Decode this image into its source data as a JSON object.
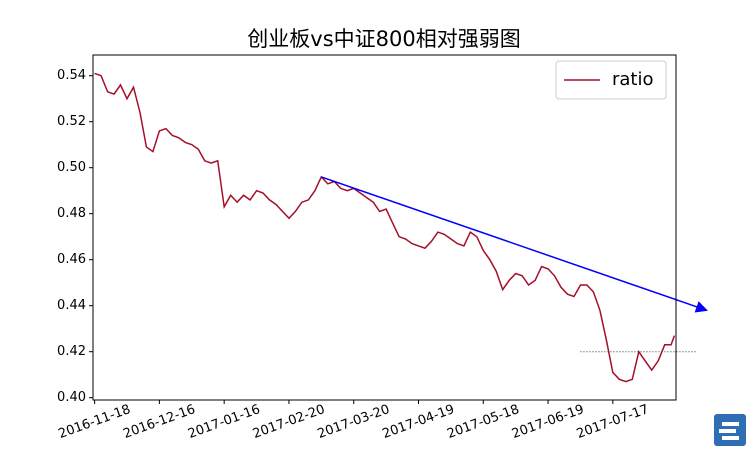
{
  "chart_data": {
    "type": "line",
    "title": "创业板vs中证800相对强弱图",
    "x": [
      0,
      2,
      4,
      6,
      8,
      10,
      12,
      14,
      16,
      18,
      20,
      22,
      24,
      26,
      28,
      30,
      32,
      34,
      36,
      38,
      40,
      42,
      44,
      46,
      48,
      50,
      52,
      54,
      56,
      58,
      60,
      62,
      64,
      66,
      68,
      70,
      72,
      74,
      76,
      78,
      80,
      82,
      84,
      86,
      88,
      90,
      92,
      94,
      96,
      98,
      100,
      102,
      104,
      106,
      108,
      110,
      112,
      114,
      116,
      118,
      120,
      122,
      124,
      126,
      128,
      130,
      132,
      134,
      136,
      138,
      140,
      142,
      144,
      146,
      148,
      150,
      152,
      154,
      156,
      158,
      160,
      162,
      164,
      166,
      168,
      170,
      172,
      174,
      176,
      178,
      179
    ],
    "series": [
      {
        "name": "ratio",
        "color": "#a50f28",
        "values": [
          0.541,
          0.54,
          0.533,
          0.532,
          0.536,
          0.53,
          0.535,
          0.524,
          0.509,
          0.507,
          0.516,
          0.517,
          0.514,
          0.513,
          0.511,
          0.51,
          0.508,
          0.503,
          0.502,
          0.503,
          0.483,
          0.488,
          0.485,
          0.488,
          0.486,
          0.49,
          0.489,
          0.486,
          0.484,
          0.481,
          0.478,
          0.481,
          0.485,
          0.486,
          0.49,
          0.496,
          0.493,
          0.494,
          0.491,
          0.49,
          0.491,
          0.489,
          0.487,
          0.485,
          0.481,
          0.482,
          0.476,
          0.47,
          0.469,
          0.467,
          0.466,
          0.465,
          0.468,
          0.472,
          0.471,
          0.469,
          0.467,
          0.466,
          0.472,
          0.47,
          0.464,
          0.46,
          0.455,
          0.447,
          0.451,
          0.454,
          0.453,
          0.449,
          0.451,
          0.457,
          0.456,
          0.453,
          0.448,
          0.445,
          0.444,
          0.449,
          0.449,
          0.446,
          0.438,
          0.425,
          0.411,
          0.408,
          0.407,
          0.408,
          0.42,
          0.416,
          0.412,
          0.416,
          0.423,
          0.423,
          0.427
        ]
      }
    ],
    "xlim": [
      -0.5,
      179.5
    ],
    "xticks": [
      {
        "value": 0,
        "label": "2016-11-18"
      },
      {
        "value": 20,
        "label": "2016-12-16"
      },
      {
        "value": 40,
        "label": "2017-01-16"
      },
      {
        "value": 60,
        "label": "2017-02-20"
      },
      {
        "value": 80,
        "label": "2017-03-20"
      },
      {
        "value": 100,
        "label": "2017-04-19"
      },
      {
        "value": 120,
        "label": "2017-05-18"
      },
      {
        "value": 140,
        "label": "2017-06-19"
      },
      {
        "value": 160,
        "label": "2017-07-17"
      }
    ],
    "ylim": [
      0.399,
      0.549
    ],
    "yticks": [
      {
        "value": 0.4,
        "label": "0.40"
      },
      {
        "value": 0.42,
        "label": "0.42"
      },
      {
        "value": 0.44,
        "label": "0.44"
      },
      {
        "value": 0.46,
        "label": "0.46"
      },
      {
        "value": 0.48,
        "label": "0.48"
      },
      {
        "value": 0.5,
        "label": "0.50"
      },
      {
        "value": 0.52,
        "label": "0.52"
      },
      {
        "value": 0.54,
        "label": "0.54"
      }
    ],
    "legend": "upper right",
    "trend_arrow": {
      "x": [
        70,
        189
      ],
      "y": [
        0.496,
        0.438
      ],
      "color": "#0000ff"
    },
    "reference_line": {
      "x": [
        150,
        186
      ],
      "y": 0.42,
      "color": "#333333"
    }
  }
}
